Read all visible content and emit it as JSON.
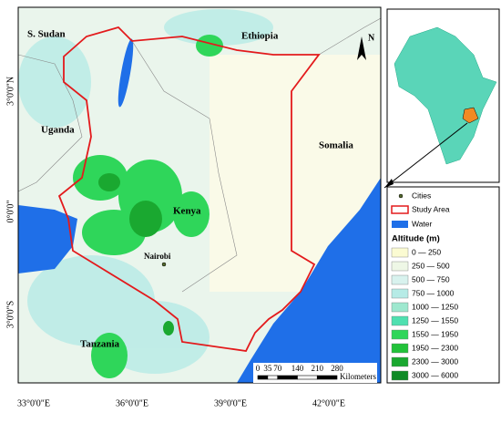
{
  "map": {
    "countries": [
      "S. Sudan",
      "Ethiopia",
      "Uganda",
      "Somalia",
      "Kenya",
      "Tanzania"
    ],
    "city": "Nairobi",
    "north": "N",
    "x_labels": [
      "33°0'0\"E",
      "36°0'0\"E",
      "39°0'0\"E",
      "42°0'0\"E"
    ],
    "y_labels": [
      "3°0'0\"N",
      "0°0'0\"",
      "3°0'0\"S"
    ],
    "scale": {
      "ticks": [
        0,
        35,
        70,
        140,
        210,
        280
      ],
      "unit": "Kilometers"
    }
  },
  "legend": {
    "items": [
      {
        "label": "Cities"
      },
      {
        "label": "Study Area"
      },
      {
        "label": "Water"
      }
    ],
    "altitude": {
      "title": "Altitude (m)",
      "classes": [
        {
          "label": "0 — 250",
          "color": "#fbfbd2"
        },
        {
          "label": "250 — 500",
          "color": "#eef7e6"
        },
        {
          "label": "500 — 750",
          "color": "#d8f2ee"
        },
        {
          "label": "750 — 1000",
          "color": "#b6ebe6"
        },
        {
          "label": "1000 — 1250",
          "color": "#9ee8cf"
        },
        {
          "label": "1250 — 1550",
          "color": "#4fe0b0"
        },
        {
          "label": "1550 — 1950",
          "color": "#2fd65a"
        },
        {
          "label": "1950 — 2300",
          "color": "#22c23a"
        },
        {
          "label": "2300 — 3000",
          "color": "#1aa830"
        },
        {
          "label": "3000 — 6000",
          "color": "#0f8a26"
        }
      ]
    }
  }
}
